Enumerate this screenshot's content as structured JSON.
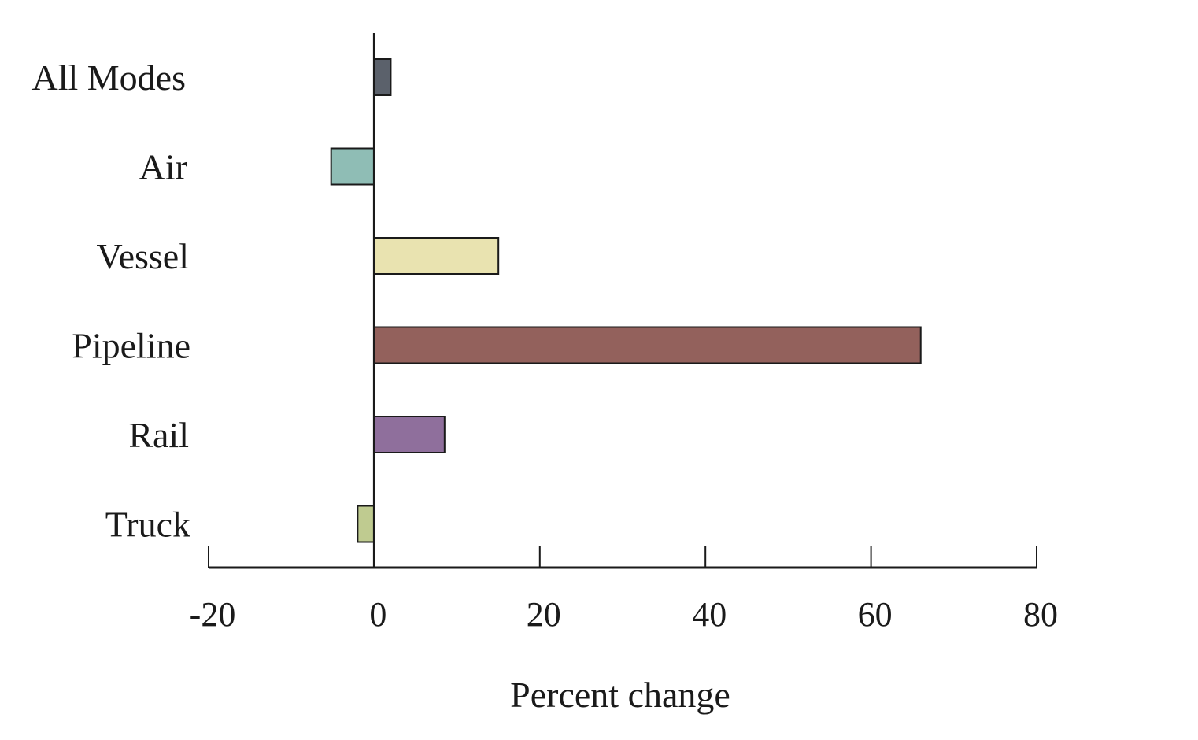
{
  "chart_data": {
    "type": "bar",
    "orientation": "horizontal",
    "title": "",
    "xlabel": "Percent change",
    "ylabel": "",
    "categories": [
      "All Modes",
      "Air",
      "Vessel",
      "Pipeline",
      "Rail",
      "Truck"
    ],
    "values": [
      2,
      -5.2,
      15,
      66,
      8.5,
      -2
    ],
    "colors": [
      "#5b616b",
      "#8fbdb5",
      "#e9e3b0",
      "#93615c",
      "#8f6f9c",
      "#bfcb90"
    ],
    "xlim": [
      -20,
      80
    ],
    "xticks": [
      -20,
      0,
      20,
      40,
      60,
      80
    ],
    "xtick_labels": [
      "-20",
      "0",
      "20",
      "40",
      "60",
      "80"
    ],
    "grid": false,
    "legend": false
  }
}
